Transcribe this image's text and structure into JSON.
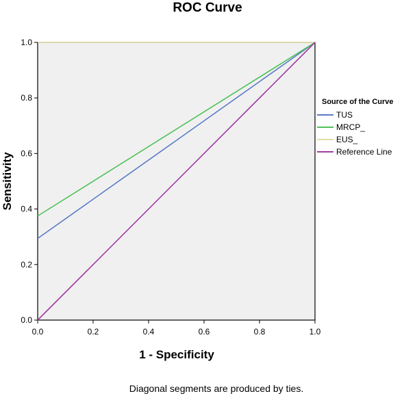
{
  "chart_data": {
    "type": "line",
    "title": "ROC Curve",
    "xlabel": "1 - Specificity",
    "ylabel": "Sensitivity",
    "xlim": [
      0,
      1
    ],
    "ylim": [
      0,
      1
    ],
    "xticks": [
      "0.0",
      "0.2",
      "0.4",
      "0.6",
      "0.8",
      "1.0"
    ],
    "yticks": [
      "0.0",
      "0.2",
      "0.4",
      "0.6",
      "0.8",
      "1.0"
    ],
    "grid": false,
    "plot_background": "#f0f0f0",
    "legend": {
      "title": "Source of the Curve",
      "position": "right"
    },
    "series": [
      {
        "name": "TUS",
        "color": "#5a7bc8",
        "x": [
          0,
          1
        ],
        "y": [
          0.294,
          1.0
        ]
      },
      {
        "name": "MRCP_",
        "color": "#4cc257",
        "x": [
          0,
          1
        ],
        "y": [
          0.375,
          1.0
        ]
      },
      {
        "name": "EUS_",
        "color": "#e4dca8",
        "x": [
          0,
          1
        ],
        "y": [
          1.0,
          1.0
        ]
      },
      {
        "name": "Reference Line",
        "color": "#a03ca0",
        "x": [
          0,
          1
        ],
        "y": [
          0,
          1
        ]
      }
    ],
    "footnote": "Diagonal segments are produced by ties."
  }
}
